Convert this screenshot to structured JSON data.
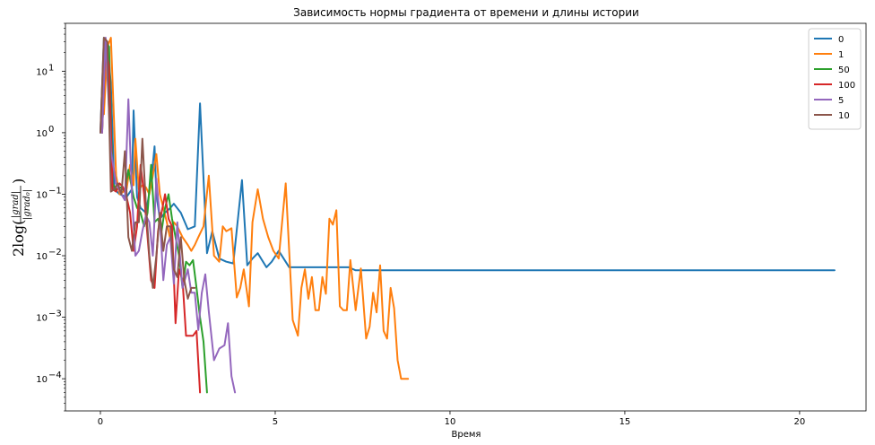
{
  "chart_data": {
    "type": "line",
    "title": "Зависимость нормы градиента от времени и длины истории",
    "xlabel": "Время",
    "ylabel": {
      "prefix": "2log(",
      "num": "|grad|",
      "den": "|grad₀|",
      "suffix": ")"
    },
    "xlim": [
      -1.0,
      21.9
    ],
    "ylim": [
      3e-05,
      60
    ],
    "yscale": "log",
    "xticks": [
      0,
      5,
      10,
      15,
      20
    ],
    "yticks": [
      {
        "value": 0.0001,
        "base": "10",
        "exp": "−4"
      },
      {
        "value": 0.001,
        "base": "10",
        "exp": "−3"
      },
      {
        "value": 0.01,
        "base": "10",
        "exp": "−2"
      },
      {
        "value": 0.1,
        "base": "10",
        "exp": "−1"
      },
      {
        "value": 1,
        "base": "10",
        "exp": "0"
      },
      {
        "value": 10,
        "base": "10",
        "exp": "1"
      }
    ],
    "legend_position": "top-right",
    "series": [
      {
        "name": "0",
        "color": "#1f77b4",
        "x": [
          0.0,
          0.1,
          0.2,
          0.3,
          0.4,
          0.55,
          0.75,
          0.9,
          0.95,
          1.05,
          1.15,
          1.3,
          1.45,
          1.55,
          1.6,
          1.7,
          1.85,
          2.0,
          2.1,
          2.3,
          2.5,
          2.7,
          2.85,
          3.05,
          3.2,
          3.4,
          3.6,
          3.8,
          4.05,
          4.2,
          4.35,
          4.5,
          4.75,
          4.9,
          5.1,
          5.4,
          5.9,
          6.3,
          6.6,
          7.1,
          7.3,
          7.45,
          7.6,
          7.75,
          7.9,
          8.1,
          8.3,
          8.55,
          8.75,
          8.9,
          9.2,
          9.35,
          9.6,
          9.85,
          10.05,
          10.2,
          10.6,
          10.8,
          11.05,
          11.2,
          11.6,
          11.7,
          11.85,
          12.2,
          12.3,
          12.5,
          12.9,
          13.05,
          13.35,
          13.5,
          13.75,
          14.0,
          14.35,
          14.6,
          14.8,
          15.1,
          15.6,
          16.0,
          16.1,
          16.3,
          16.5,
          16.6,
          16.8,
          17.2,
          17.4,
          17.6,
          17.9,
          18.05,
          18.3,
          18.7,
          18.85,
          19.05,
          19.25,
          19.55,
          19.75,
          19.9,
          20.4,
          20.45,
          20.6,
          21.0
        ],
        "y": [
          1.0,
          35.0,
          30.0,
          6.0,
          0.12,
          0.1,
          0.09,
          0.12,
          2.3,
          0.09,
          0.06,
          0.05,
          0.15,
          0.6,
          0.1,
          0.04,
          0.05,
          0.06,
          0.07,
          0.05,
          0.027,
          0.03,
          3.0,
          0.011,
          0.025,
          0.009,
          0.008,
          0.0075,
          0.17,
          0.007,
          0.009,
          0.011,
          0.0065,
          0.008,
          0.012,
          0.0065,
          0.0065,
          0.0065,
          0.0065,
          0.0065,
          0.0058,
          0.0058,
          0.0058,
          0.0058,
          0.0058,
          0.0058,
          0.0058,
          0.0058,
          0.0058,
          0.0058,
          0.0058,
          0.0058,
          0.0058,
          0.0058,
          0.0058,
          0.0058,
          0.0058,
          0.0058,
          0.0058,
          0.0058,
          0.0058,
          0.0058,
          0.0058,
          0.0058,
          0.0058,
          0.0058,
          0.0058,
          0.0058,
          0.0058,
          0.0058,
          0.0058,
          0.0058,
          0.0058,
          0.0058,
          0.0058,
          0.0058,
          0.0058,
          0.0058,
          0.0058,
          0.0058,
          0.0058,
          0.0058,
          0.0058,
          0.0058,
          0.0058,
          0.0058,
          0.0058,
          0.0058,
          0.0058,
          0.0058,
          0.0058,
          0.0058,
          0.0058,
          0.0058,
          0.0058,
          0.0058,
          0.0058,
          0.0058,
          0.0058,
          0.0058
        ]
      },
      {
        "name": "1",
        "color": "#ff7f0e",
        "x": [
          0.1,
          0.2,
          0.3,
          0.45,
          0.55,
          0.75,
          0.85,
          0.95,
          1.0,
          1.1,
          1.2,
          1.3,
          1.4,
          1.5,
          1.6,
          1.7,
          1.8,
          1.9,
          2.0,
          2.1,
          2.2,
          2.35,
          2.5,
          2.6,
          2.7,
          2.8,
          2.95,
          3.1,
          3.25,
          3.4,
          3.5,
          3.6,
          3.75,
          3.9,
          4.0,
          4.1,
          4.25,
          4.35,
          4.5,
          4.65,
          4.8,
          4.95,
          5.1,
          5.3,
          5.5,
          5.65,
          5.75,
          5.85,
          5.95,
          6.05,
          6.15,
          6.25,
          6.35,
          6.45,
          6.55,
          6.65,
          6.75,
          6.85,
          6.95,
          7.05,
          7.15,
          7.3,
          7.45,
          7.6,
          7.7,
          7.8,
          7.9,
          8.0,
          8.1,
          8.2,
          8.3,
          8.4,
          8.5,
          8.6,
          8.7,
          8.8
        ],
        "y": [
          2.0,
          25.0,
          35.0,
          0.2,
          0.1,
          0.12,
          0.3,
          0.14,
          0.8,
          0.12,
          0.14,
          0.13,
          0.1,
          0.2,
          0.45,
          0.1,
          0.06,
          0.035,
          0.018,
          0.035,
          0.03,
          0.02,
          0.015,
          0.012,
          0.015,
          0.02,
          0.03,
          0.2,
          0.01,
          0.008,
          0.03,
          0.025,
          0.028,
          0.0021,
          0.003,
          0.006,
          0.0015,
          0.035,
          0.12,
          0.04,
          0.02,
          0.012,
          0.009,
          0.15,
          0.0009,
          0.0005,
          0.003,
          0.006,
          0.002,
          0.0045,
          0.0013,
          0.0013,
          0.0045,
          0.0024,
          0.04,
          0.032,
          0.055,
          0.0015,
          0.0013,
          0.0013,
          0.0085,
          0.0013,
          0.0062,
          0.00045,
          0.0007,
          0.0025,
          0.0012,
          0.007,
          0.0006,
          0.00045,
          0.003,
          0.0014,
          0.0002,
          0.0001,
          0.0001,
          0.0001
        ]
      },
      {
        "name": "50",
        "color": "#2ca02c",
        "x": [
          0.05,
          0.15,
          0.25,
          0.35,
          0.45,
          0.6,
          0.7,
          0.8,
          0.95,
          1.05,
          1.15,
          1.25,
          1.35,
          1.45,
          1.55,
          1.65,
          1.75,
          1.85,
          1.95,
          2.05,
          2.15,
          2.25,
          2.35,
          2.45,
          2.55,
          2.65,
          2.75,
          2.85,
          2.95,
          3.05
        ],
        "y": [
          1.0,
          30.0,
          25.0,
          0.15,
          0.12,
          0.13,
          0.11,
          0.25,
          0.09,
          0.06,
          0.05,
          0.03,
          0.05,
          0.3,
          0.035,
          0.04,
          0.025,
          0.06,
          0.1,
          0.04,
          0.02,
          0.01,
          0.003,
          0.008,
          0.007,
          0.0085,
          0.003,
          0.001,
          0.0004,
          6e-05
        ]
      },
      {
        "name": "100",
        "color": "#d62728",
        "x": [
          0.05,
          0.15,
          0.25,
          0.35,
          0.45,
          0.55,
          0.65,
          0.75,
          0.85,
          0.95,
          1.05,
          1.15,
          1.25,
          1.35,
          1.45,
          1.55,
          1.65,
          1.75,
          1.85,
          1.95,
          2.05,
          2.15,
          2.25,
          2.35,
          2.45,
          2.55,
          2.65,
          2.75,
          2.85
        ],
        "y": [
          1.0,
          25.0,
          12.0,
          0.12,
          0.11,
          0.15,
          0.13,
          0.09,
          0.05,
          0.012,
          0.03,
          0.3,
          0.1,
          0.02,
          0.004,
          0.003,
          0.025,
          0.05,
          0.1,
          0.04,
          0.03,
          0.0008,
          0.006,
          0.004,
          0.0005,
          0.0005,
          0.0005,
          0.0006,
          6e-05
        ]
      },
      {
        "name": "5",
        "color": "#9467bd",
        "x": [
          0.05,
          0.15,
          0.3,
          0.45,
          0.6,
          0.7,
          0.8,
          0.9,
          1.0,
          1.1,
          1.2,
          1.3,
          1.4,
          1.5,
          1.6,
          1.7,
          1.8,
          1.9,
          2.0,
          2.1,
          2.2,
          2.35,
          2.5,
          2.6,
          2.7,
          2.8,
          2.9,
          3.0,
          3.1,
          3.25,
          3.4,
          3.55,
          3.65,
          3.75,
          3.85
        ],
        "y": [
          1.0,
          35.0,
          0.5,
          0.15,
          0.1,
          0.08,
          3.5,
          0.1,
          0.01,
          0.012,
          0.025,
          0.045,
          0.035,
          0.01,
          0.18,
          0.04,
          0.004,
          0.015,
          0.02,
          0.0035,
          0.035,
          0.003,
          0.006,
          0.0025,
          0.0025,
          0.00062,
          0.0025,
          0.005,
          0.00124,
          0.0002,
          0.00031,
          0.00035,
          0.0008,
          0.00011,
          6e-05
        ]
      },
      {
        "name": "10",
        "color": "#8c564b",
        "x": [
          0.0,
          0.1,
          0.2,
          0.3,
          0.4,
          0.5,
          0.6,
          0.7,
          0.8,
          0.9,
          1.0,
          1.1,
          1.2,
          1.3,
          1.4,
          1.5,
          1.6,
          1.7,
          1.8,
          1.9,
          2.0,
          2.1,
          2.2,
          2.3,
          2.4,
          2.5,
          2.6,
          2.7
        ],
        "y": [
          1.0,
          35.0,
          30.0,
          0.11,
          0.12,
          0.15,
          0.1,
          0.5,
          0.02,
          0.012,
          0.035,
          0.035,
          0.8,
          0.07,
          0.01,
          0.003,
          0.01,
          0.05,
          0.012,
          0.03,
          0.03,
          0.006,
          0.0045,
          0.02,
          0.004,
          0.002,
          0.003,
          0.003
        ]
      }
    ]
  }
}
